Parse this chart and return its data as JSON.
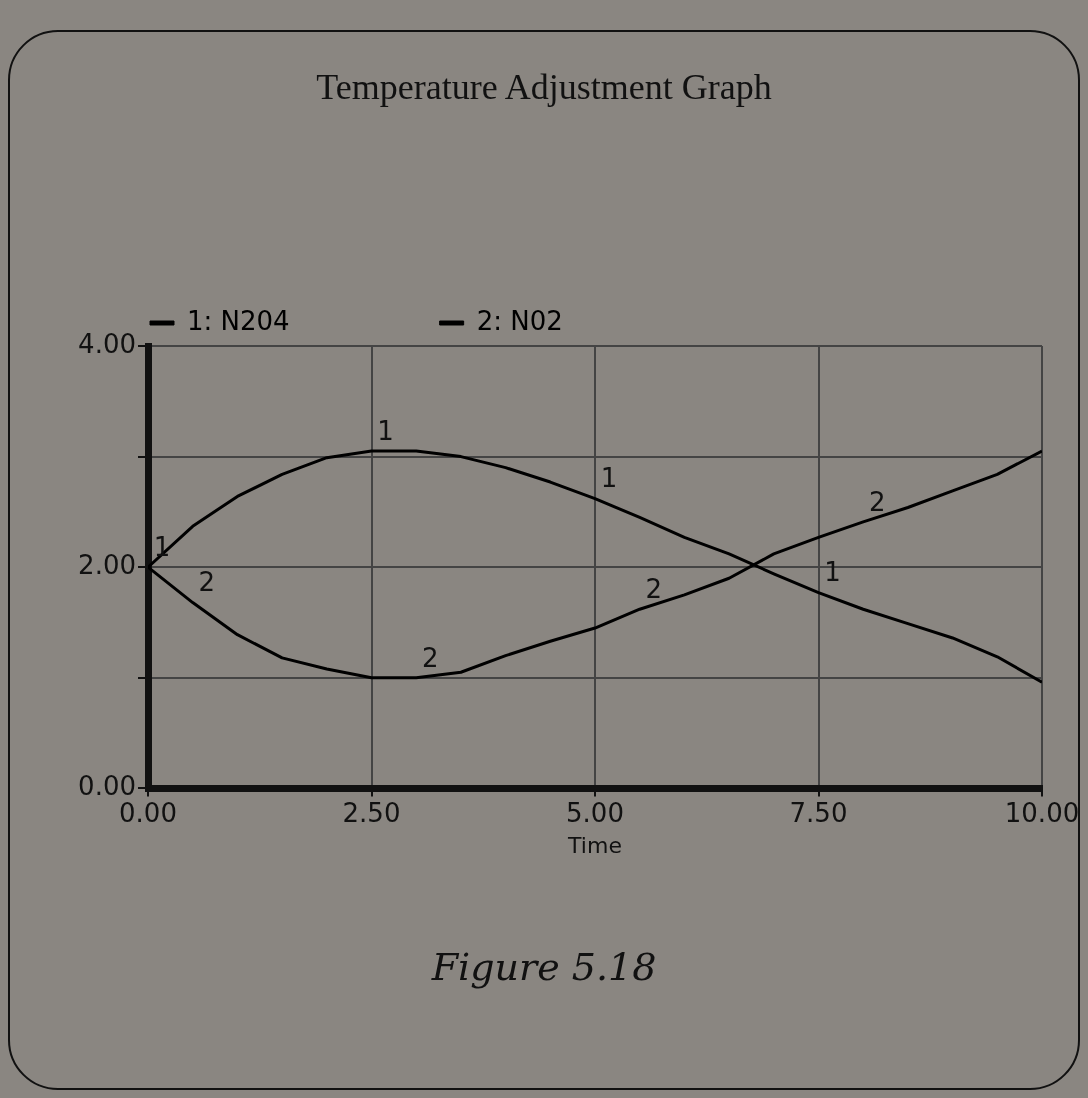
{
  "chart_data": {
    "type": "line",
    "title": "Temperature Adjustment Graph",
    "xlabel": "Time",
    "x": [
      0,
      0.5,
      1,
      1.5,
      2,
      2.5,
      3,
      3.5,
      4,
      4.5,
      5,
      5.5,
      6,
      6.5,
      7,
      7.5,
      8,
      8.5,
      9,
      9.5,
      10
    ],
    "series": [
      {
        "name": "1: N204",
        "color": "#000000",
        "values": [
          2.0,
          2.37,
          2.64,
          2.84,
          2.99,
          3.05,
          3.05,
          3.0,
          2.9,
          2.77,
          2.62,
          2.45,
          2.27,
          2.12,
          1.94,
          1.77,
          1.62,
          1.49,
          1.36,
          1.19,
          0.96
        ]
      },
      {
        "name": "2: N02",
        "color": "#000000",
        "values": [
          2.0,
          1.68,
          1.39,
          1.18,
          1.08,
          1.0,
          1.0,
          1.05,
          1.2,
          1.33,
          1.45,
          1.62,
          1.75,
          1.9,
          2.12,
          2.27,
          2.41,
          2.54,
          2.69,
          2.84,
          3.05
        ]
      }
    ],
    "xlim": [
      0,
      10
    ],
    "xticks": [
      {
        "value": 0,
        "label": "0.00"
      },
      {
        "value": 2.5,
        "label": "2.50"
      },
      {
        "value": 5,
        "label": "5.00"
      },
      {
        "value": 7.5,
        "label": "7.50"
      },
      {
        "value": 10,
        "label": "10.00"
      }
    ],
    "ylim": [
      0,
      4
    ],
    "yticks": [
      {
        "value": 0,
        "label": "0.00"
      },
      {
        "value": 1,
        "label": null
      },
      {
        "value": 2,
        "label": "2.00"
      },
      {
        "value": 3,
        "label": null
      },
      {
        "value": 4,
        "label": "4.00"
      }
    ],
    "grid": true,
    "legend": "top left",
    "marker": "none",
    "line_style": "solid",
    "annotations": [
      {
        "text": "1",
        "x": 0,
        "y": 2.0
      },
      {
        "text": "1",
        "x": 2.5,
        "y": 3.05
      },
      {
        "text": "1",
        "x": 5,
        "y": 2.62
      },
      {
        "text": "1",
        "x": 7.5,
        "y": 1.77
      },
      {
        "text": "2",
        "x": 0.5,
        "y": 1.68
      },
      {
        "text": "2",
        "x": 3,
        "y": 1.0
      },
      {
        "text": "2",
        "x": 5.5,
        "y": 1.62
      },
      {
        "text": "2",
        "x": 8,
        "y": 2.41
      },
      "Figure 5.18"
    ]
  }
}
